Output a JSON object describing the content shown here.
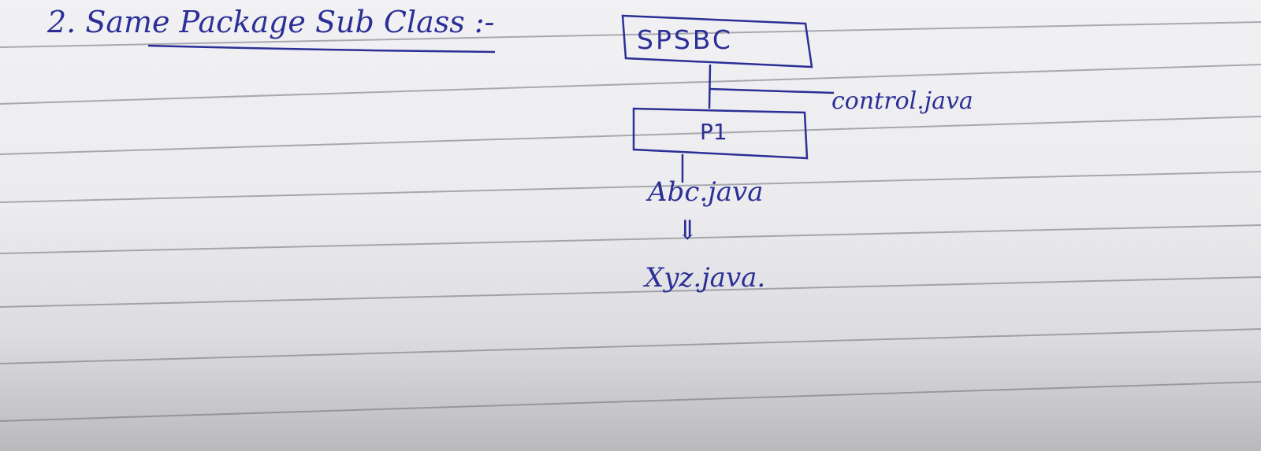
{
  "heading": "2. Same Package Sub Class :-",
  "nodes": {
    "root_package": "SPSBC",
    "control_file": "control.java",
    "sub_package": "P1",
    "abc_file": "Abc.java",
    "xyz_file": "Xyz.java."
  },
  "arrow": "⇓",
  "colors": {
    "ink": "#2b2f96",
    "rule_line": "#6d6f78"
  }
}
